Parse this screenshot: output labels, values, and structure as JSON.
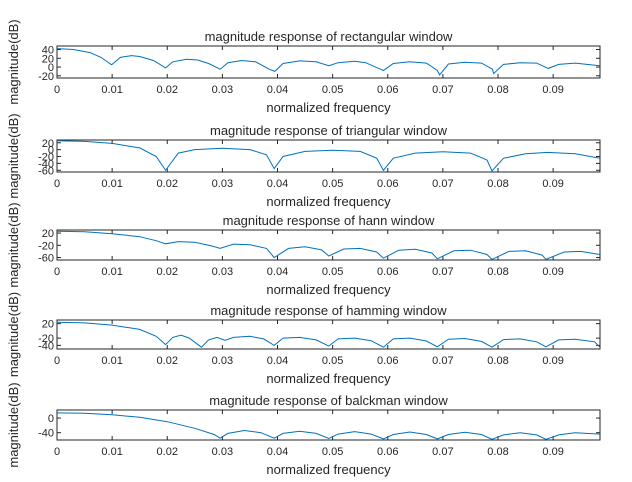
{
  "chart_data": [
    {
      "type": "line",
      "title": "magnitude response of rectangular window",
      "xlabel": "normalized frequency",
      "ylabel": "magnitude(dB)",
      "xlim": [
        0,
        0.0985
      ],
      "ylim": [
        -25,
        48
      ],
      "xticks": [
        "0",
        "0.01",
        "0.02",
        "0.03",
        "0.04",
        "0.05",
        "0.06",
        "0.07",
        "0.08",
        "0.09"
      ],
      "yticks": [
        "40",
        "20",
        "0",
        "-20"
      ],
      "ytick_values": [
        40,
        20,
        0,
        -20
      ],
      "series": [
        {
          "x": [
            0,
            0.003,
            0.006,
            0.008,
            0.0099,
            0.0115,
            0.0135,
            0.015,
            0.0175,
            0.0197,
            0.021,
            0.0235,
            0.0255,
            0.0275,
            0.0296,
            0.031,
            0.0335,
            0.036,
            0.0385,
            0.0395,
            0.041,
            0.044,
            0.047,
            0.0493,
            0.051,
            0.054,
            0.056,
            0.0592,
            0.061,
            0.064,
            0.067,
            0.069,
            0.0694,
            0.071,
            0.074,
            0.077,
            0.079,
            0.0792,
            0.081,
            0.084,
            0.087,
            0.0891,
            0.091,
            0.094,
            0.0985
          ],
          "y": [
            42,
            40,
            33,
            22,
            5,
            22,
            26,
            24,
            15,
            -2,
            12,
            18,
            16,
            8,
            -5,
            10,
            15,
            12,
            -5,
            -10,
            8,
            14,
            12,
            3,
            10,
            13,
            10,
            -8,
            8,
            12,
            9,
            -8,
            -18,
            7,
            11,
            9,
            -5,
            -15,
            6,
            10,
            9,
            -3,
            6,
            9,
            3
          ]
        }
      ]
    },
    {
      "type": "line",
      "title": "magnitude response of triangular window",
      "xlabel": "normalized frequency",
      "ylabel": "magnitude(dB)",
      "xlim": [
        0,
        0.0985
      ],
      "ylim": [
        -65,
        28
      ],
      "xticks": [
        "0",
        "0.01",
        "0.02",
        "0.03",
        "0.04",
        "0.05",
        "0.06",
        "0.07",
        "0.08",
        "0.09"
      ],
      "yticks": [
        "20",
        "0",
        "-20",
        "-40",
        "-60"
      ],
      "ytick_values": [
        20,
        0,
        -20,
        -40,
        -60
      ],
      "series": [
        {
          "x": [
            0,
            0.005,
            0.01,
            0.015,
            0.018,
            0.0197,
            0.022,
            0.025,
            0.03,
            0.035,
            0.038,
            0.0394,
            0.041,
            0.045,
            0.05,
            0.055,
            0.058,
            0.0592,
            0.061,
            0.065,
            0.07,
            0.075,
            0.078,
            0.0789,
            0.081,
            0.085,
            0.089,
            0.094,
            0.0985
          ],
          "y": [
            26,
            24,
            18,
            5,
            -20,
            -60,
            -10,
            0,
            4,
            0,
            -15,
            -55,
            -20,
            -5,
            -2,
            -5,
            -25,
            -60,
            -25,
            -10,
            -6,
            -10,
            -30,
            -62,
            -25,
            -12,
            -8,
            -12,
            -25
          ]
        }
      ]
    },
    {
      "type": "line",
      "title": "magnitude response of hann window",
      "xlabel": "normalized frequency",
      "ylabel": "magnitude(dB)",
      "xlim": [
        0,
        0.0985
      ],
      "ylim": [
        -68,
        30
      ],
      "xticks": [
        "0",
        "0.01",
        "0.02",
        "0.03",
        "0.04",
        "0.05",
        "0.06",
        "0.07",
        "0.08",
        "0.09"
      ],
      "yticks": [
        "20",
        "-20",
        "-60"
      ],
      "ytick_values": [
        20,
        -20,
        -60
      ],
      "series": [
        {
          "x": [
            0,
            0.005,
            0.01,
            0.015,
            0.018,
            0.0197,
            0.022,
            0.025,
            0.028,
            0.0296,
            0.032,
            0.035,
            0.038,
            0.0394,
            0.042,
            0.045,
            0.048,
            0.0493,
            0.052,
            0.055,
            0.058,
            0.0592,
            0.062,
            0.065,
            0.068,
            0.069,
            0.072,
            0.075,
            0.078,
            0.0789,
            0.082,
            0.085,
            0.088,
            0.0887,
            0.092,
            0.095,
            0.0985
          ],
          "y": [
            26,
            24,
            18,
            8,
            -5,
            -15,
            -8,
            -10,
            -22,
            -30,
            -16,
            -18,
            -30,
            -60,
            -30,
            -25,
            -35,
            -55,
            -32,
            -30,
            -42,
            -62,
            -36,
            -33,
            -45,
            -64,
            -38,
            -36,
            -50,
            -66,
            -40,
            -38,
            -52,
            -66,
            -42,
            -40,
            -50
          ]
        }
      ]
    },
    {
      "type": "line",
      "title": "magnitude response of hamming window",
      "xlabel": "normalized frequency",
      "ylabel": "magnitude(dB)",
      "xlim": [
        0,
        0.0985
      ],
      "ylim": [
        -50,
        30
      ],
      "xticks": [
        "0",
        "0.01",
        "0.02",
        "0.03",
        "0.04",
        "0.05",
        "0.06",
        "0.07",
        "0.08",
        "0.09"
      ],
      "yticks": [
        "20",
        "-20",
        "-40"
      ],
      "ytick_values": [
        20,
        -20,
        -40
      ],
      "series": [
        {
          "x": [
            0,
            0.005,
            0.01,
            0.015,
            0.018,
            0.0197,
            0.021,
            0.0225,
            0.024,
            0.0262,
            0.0275,
            0.029,
            0.0305,
            0.032,
            0.035,
            0.0375,
            0.0394,
            0.041,
            0.044,
            0.047,
            0.0493,
            0.051,
            0.054,
            0.057,
            0.0592,
            0.061,
            0.064,
            0.067,
            0.069,
            0.071,
            0.074,
            0.077,
            0.0789,
            0.081,
            0.084,
            0.087,
            0.0887,
            0.091,
            0.094,
            0.0975,
            0.0985
          ],
          "y": [
            24,
            22,
            16,
            4,
            -15,
            -38,
            -18,
            -12,
            -20,
            -45,
            -25,
            -18,
            -26,
            -18,
            -15,
            -22,
            -40,
            -20,
            -18,
            -25,
            -42,
            -22,
            -20,
            -27,
            -45,
            -22,
            -20,
            -28,
            -44,
            -23,
            -21,
            -29,
            -45,
            -24,
            -22,
            -30,
            -44,
            -25,
            -23,
            -30,
            -45
          ]
        }
      ]
    },
    {
      "type": "line",
      "title": "magnitude response of balckman window",
      "xlabel": "normalized frequency",
      "ylabel": "magnitude(dB)",
      "xlim": [
        0,
        0.0985
      ],
      "ylim": [
        -60,
        22
      ],
      "xticks": [
        "0",
        "0.01",
        "0.02",
        "0.03",
        "0.04",
        "0.05",
        "0.06",
        "0.07",
        "0.08",
        "0.09"
      ],
      "yticks": [
        "0",
        "-40"
      ],
      "ytick_values": [
        0,
        -40
      ],
      "series": [
        {
          "x": [
            0,
            0.005,
            0.01,
            0.015,
            0.02,
            0.025,
            0.0285,
            0.0296,
            0.031,
            0.034,
            0.037,
            0.0394,
            0.041,
            0.044,
            0.047,
            0.0493,
            0.051,
            0.054,
            0.057,
            0.0592,
            0.061,
            0.064,
            0.067,
            0.069,
            0.071,
            0.074,
            0.077,
            0.0789,
            0.081,
            0.084,
            0.087,
            0.0887,
            0.091,
            0.094,
            0.0985
          ],
          "y": [
            14,
            13,
            9,
            2,
            -10,
            -28,
            -45,
            -55,
            -42,
            -34,
            -40,
            -55,
            -42,
            -36,
            -42,
            -56,
            -44,
            -37,
            -44,
            -57,
            -45,
            -38,
            -45,
            -57,
            -45,
            -39,
            -45,
            -58,
            -46,
            -40,
            -46,
            -58,
            -46,
            -40,
            -44
          ]
        }
      ]
    }
  ]
}
